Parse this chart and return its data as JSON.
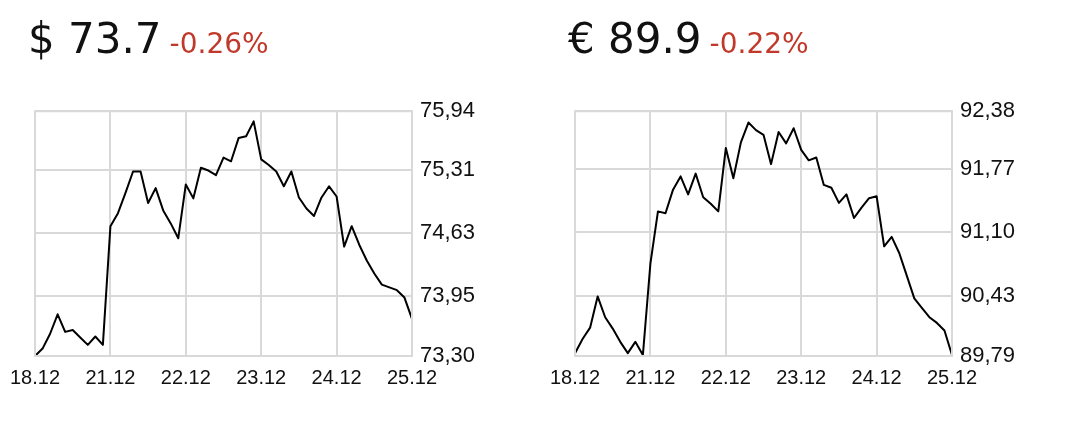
{
  "chart_data": [
    {
      "type": "line",
      "title": "$ 73.7",
      "subtitle": "-0.26%",
      "grid": true,
      "marker": "none",
      "line_style": "solid",
      "categories": [
        "18.12",
        null,
        null,
        null,
        null,
        null,
        null,
        null,
        null,
        null,
        "21.12",
        null,
        null,
        null,
        null,
        null,
        null,
        null,
        null,
        null,
        "22.12",
        null,
        null,
        null,
        null,
        null,
        null,
        null,
        null,
        null,
        "23.12",
        null,
        null,
        null,
        null,
        null,
        null,
        null,
        null,
        null,
        "24.12",
        null,
        null,
        null,
        null,
        null,
        null,
        null,
        null,
        null,
        "25.12"
      ],
      "ylim": [
        73.3,
        75.94
      ],
      "yticks": [
        {
          "value": 73.3,
          "label": "73,30"
        },
        {
          "value": 73.95,
          "label": "73,95"
        },
        {
          "value": 74.63,
          "label": "74,63"
        },
        {
          "value": 75.31,
          "label": "75,31"
        },
        {
          "value": 75.94,
          "label": "75,94"
        }
      ],
      "series": [
        {
          "color": "#000000",
          "values": [
            73.3,
            73.38,
            73.54,
            73.75,
            73.56,
            73.58,
            73.5,
            73.42,
            73.51,
            73.42,
            74.7,
            74.84,
            75.06,
            75.29,
            75.29,
            74.95,
            75.11,
            74.87,
            74.73,
            74.57,
            75.15,
            75.0,
            75.33,
            75.3,
            75.25,
            75.44,
            75.4,
            75.65,
            75.67,
            75.83,
            75.42,
            75.36,
            75.29,
            75.13,
            75.29,
            75.01,
            74.89,
            74.81,
            75.01,
            75.13,
            75.02,
            74.48,
            74.7,
            74.5,
            74.33,
            74.19,
            74.07,
            74.04,
            74.01,
            73.93,
            73.7
          ]
        }
      ]
    },
    {
      "type": "line",
      "title": "€ 89.9",
      "subtitle": "-0.22%",
      "grid": true,
      "marker": "none",
      "line_style": "solid",
      "categories": [
        "18.12",
        null,
        null,
        null,
        null,
        null,
        null,
        null,
        null,
        null,
        "21.12",
        null,
        null,
        null,
        null,
        null,
        null,
        null,
        null,
        null,
        "22.12",
        null,
        null,
        null,
        null,
        null,
        null,
        null,
        null,
        null,
        "23.12",
        null,
        null,
        null,
        null,
        null,
        null,
        null,
        null,
        null,
        "24.12",
        null,
        null,
        null,
        null,
        null,
        null,
        null,
        null,
        null,
        "25.12"
      ],
      "ylim": [
        89.79,
        92.38
      ],
      "yticks": [
        {
          "value": 89.79,
          "label": "89,79"
        },
        {
          "value": 90.43,
          "label": "90,43"
        },
        {
          "value": 91.1,
          "label": "91,10"
        },
        {
          "value": 91.77,
          "label": "91,77"
        },
        {
          "value": 92.38,
          "label": "92,38"
        }
      ],
      "series": [
        {
          "color": "#000000",
          "values": [
            89.82,
            89.97,
            90.09,
            90.42,
            90.2,
            90.08,
            89.94,
            89.82,
            89.94,
            89.8,
            90.77,
            91.32,
            91.3,
            91.55,
            91.69,
            91.5,
            91.72,
            91.47,
            91.4,
            91.32,
            91.99,
            91.67,
            92.05,
            92.26,
            92.18,
            92.13,
            91.82,
            92.16,
            92.04,
            92.2,
            91.97,
            91.86,
            91.89,
            91.6,
            91.57,
            91.41,
            91.5,
            91.25,
            91.36,
            91.46,
            91.48,
            90.95,
            91.05,
            90.88,
            90.64,
            90.4,
            90.3,
            90.2,
            90.14,
            90.06,
            89.8
          ]
        }
      ]
    }
  ]
}
